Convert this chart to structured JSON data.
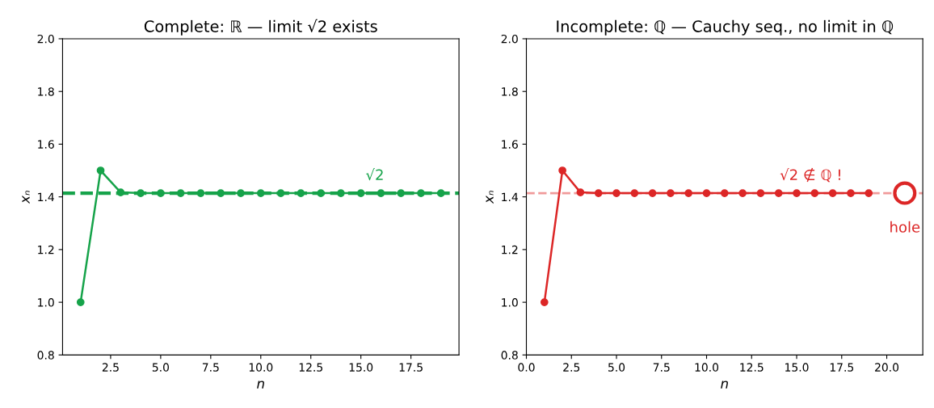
{
  "chart_data": [
    {
      "type": "line",
      "title": "Complete: ℝ — limit √2 exists",
      "xlabel": "n",
      "ylabel": "xₙ",
      "marker": "circle",
      "grid": false,
      "legend": false,
      "xlim": [
        0.1,
        19.9
      ],
      "xticks": [
        {
          "value": 2.5,
          "label": "2.5"
        },
        {
          "value": 5,
          "label": "5.0"
        },
        {
          "value": 7.5,
          "label": "7.5"
        },
        {
          "value": 10,
          "label": "10.0"
        },
        {
          "value": 12.5,
          "label": "12.5"
        },
        {
          "value": 15,
          "label": "15.0"
        },
        {
          "value": 17.5,
          "label": "17.5"
        }
      ],
      "ylim": [
        0.8,
        2.0
      ],
      "yticks": [
        {
          "value": 0.8,
          "label": "0.8"
        },
        {
          "value": 1.0,
          "label": "1.0"
        },
        {
          "value": 1.2,
          "label": "1.2"
        },
        {
          "value": 1.4,
          "label": "1.4"
        },
        {
          "value": 1.6,
          "label": "1.6"
        },
        {
          "value": 1.8,
          "label": "1.8"
        },
        {
          "value": 2.0,
          "label": "2.0"
        }
      ],
      "x": [
        1,
        2,
        3,
        4,
        5,
        6,
        7,
        8,
        9,
        10,
        11,
        12,
        13,
        14,
        15,
        16,
        17,
        18,
        19
      ],
      "series": [
        {
          "color": "#16a34a",
          "values": [
            1.0,
            1.5,
            1.417,
            1.414,
            1.414,
            1.414,
            1.414,
            1.414,
            1.414,
            1.414,
            1.414,
            1.414,
            1.414,
            1.414,
            1.414,
            1.414,
            1.414,
            1.414,
            1.414
          ]
        }
      ],
      "ref_lines": [
        {
          "axis": "y",
          "value": 1.414,
          "color": "#16a34a",
          "line_style": "dashed"
        }
      ],
      "annotations": [
        {
          "text": "√2",
          "x": 15.7,
          "y": 1.414
        }
      ]
    },
    {
      "type": "line",
      "title": "Incomplete: ℚ — Cauchy seq., no limit in ℚ",
      "xlabel": "n",
      "ylabel": "xₙ",
      "marker": "circle",
      "grid": false,
      "legend": false,
      "xlim": [
        0,
        22
      ],
      "xticks": [
        {
          "value": 0,
          "label": "0.0"
        },
        {
          "value": 2.5,
          "label": "2.5"
        },
        {
          "value": 5,
          "label": "5.0"
        },
        {
          "value": 7.5,
          "label": "7.5"
        },
        {
          "value": 10,
          "label": "10.0"
        },
        {
          "value": 12.5,
          "label": "12.5"
        },
        {
          "value": 15,
          "label": "15.0"
        },
        {
          "value": 17.5,
          "label": "17.5"
        },
        {
          "value": 20,
          "label": "20.0"
        }
      ],
      "ylim": [
        0.8,
        2.0
      ],
      "yticks": [
        {
          "value": 0.8,
          "label": "0.8"
        },
        {
          "value": 1.0,
          "label": "1.0"
        },
        {
          "value": 1.2,
          "label": "1.2"
        },
        {
          "value": 1.4,
          "label": "1.4"
        },
        {
          "value": 1.6,
          "label": "1.6"
        },
        {
          "value": 1.8,
          "label": "1.8"
        },
        {
          "value": 2.0,
          "label": "2.0"
        }
      ],
      "x": [
        1,
        2,
        3,
        4,
        5,
        6,
        7,
        8,
        9,
        10,
        11,
        12,
        13,
        14,
        15,
        16,
        17,
        18,
        19
      ],
      "series": [
        {
          "color": "#dc2626",
          "values": [
            1.0,
            1.5,
            1.417,
            1.414,
            1.414,
            1.414,
            1.414,
            1.414,
            1.414,
            1.414,
            1.414,
            1.414,
            1.414,
            1.414,
            1.414,
            1.414,
            1.414,
            1.414,
            1.414
          ]
        },
        {
          "type": "scatter",
          "color": "#dc2626",
          "x": [
            21
          ],
          "values": [
            1.414
          ]
        }
      ],
      "ref_lines": [
        {
          "axis": "y",
          "value": 1.414,
          "color": "#f09a9a",
          "line_style": "dashed"
        }
      ],
      "annotations": [
        {
          "text": "√2 ∉ ℚ !",
          "x": 15.8,
          "y": 1.414
        },
        {
          "text": "hole",
          "x": 21,
          "y": 1.414
        }
      ]
    }
  ]
}
